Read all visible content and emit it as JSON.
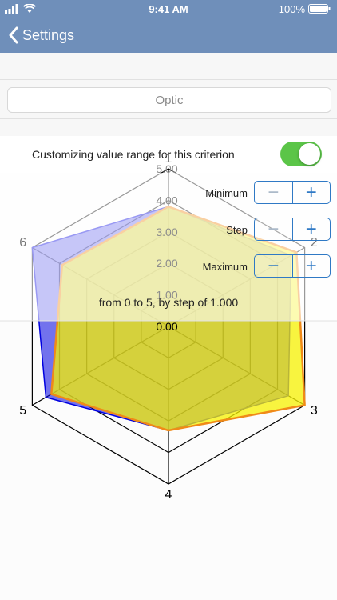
{
  "status_bar": {
    "time": "9:41 AM",
    "battery": "100%"
  },
  "nav": {
    "back_label": "Settings"
  },
  "optic_field": {
    "label": "Optic"
  },
  "toggle": {
    "label": "Customizing value range for this criterion",
    "on": true
  },
  "steppers": {
    "minimum_label": "Minimum",
    "step_label": "Step",
    "maximum_label": "Maximum",
    "minus": "−",
    "plus": "+"
  },
  "range_text": "from 0 to 5, by step of 1.000",
  "colors": {
    "nav": "#6f8fba",
    "toggle_on": "#5bc548",
    "accent": "#2f79c5",
    "series_a": "#0000e0",
    "series_b": "#f7f100",
    "series_b_stroke": "#f08a18"
  },
  "chart_data": {
    "type": "radar",
    "axes": [
      "1",
      "2",
      "3",
      "4",
      "5",
      "6"
    ],
    "tick_labels": [
      "0.00",
      "1.00",
      "2.00",
      "3.00",
      "4.00",
      "5.00"
    ],
    "range": [
      0,
      5
    ],
    "series": [
      {
        "values": [
          3.8,
          4.5,
          4.4,
          3.3,
          4.5,
          5.0
        ]
      },
      {
        "values": [
          3.8,
          4.7,
          5.0,
          3.3,
          4.3,
          3.9
        ]
      }
    ]
  }
}
